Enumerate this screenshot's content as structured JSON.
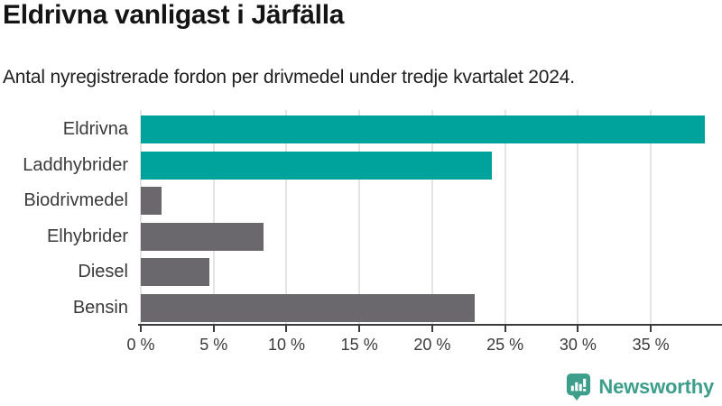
{
  "title": "Eldrivna vanligast i Järfälla",
  "subtitle": "Antal nyregistrerade fordon per drivmedel under tredje kvartalet 2024.",
  "colors": {
    "teal_bar": "#00a39b",
    "gray_bar": "#6a676d",
    "gridline": "#e4e4e4",
    "axis": "#3b3b3b",
    "label_text": "#3a3a3a",
    "title_text": "#141414",
    "logo_teal": "#3d9e8c"
  },
  "chart_data": {
    "type": "bar",
    "orientation": "horizontal",
    "title": "Eldrivna vanligast i Järfälla",
    "subtitle": "Antal nyregistrerade fordon per drivmedel under tredje kvartalet 2024.",
    "categories": [
      "Eldrivna",
      "Laddhybrider",
      "Biodrivmedel",
      "Elhybrider",
      "Diesel",
      "Bensin"
    ],
    "values": [
      38.7,
      24.1,
      1.4,
      8.4,
      4.7,
      22.9
    ],
    "unit": "%",
    "bar_colors": [
      "#00a39b",
      "#00a39b",
      "#6a676d",
      "#6a676d",
      "#6a676d",
      "#6a676d"
    ],
    "xlabel": "",
    "ylabel": "",
    "x_tick_values": [
      0,
      5,
      10,
      15,
      20,
      25,
      30,
      35
    ],
    "x_tick_labels": [
      "0 %",
      "5 %",
      "10 %",
      "15 %",
      "20 %",
      "25 %",
      "30 %",
      "35 %"
    ],
    "xlim": [
      0,
      39.7
    ],
    "grid": true,
    "legend": false
  },
  "footer": {
    "brand": "Newsworthy",
    "logo_icon": "newsworthy-pin-barchart-icon"
  }
}
